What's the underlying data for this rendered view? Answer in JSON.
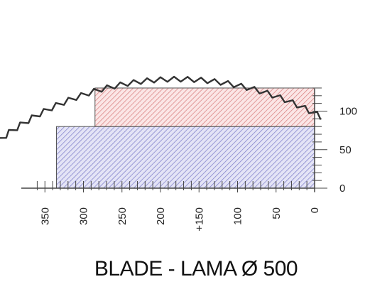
{
  "caption": "BLADE - LAMA Ø 500",
  "blade_diameter": 500,
  "x_axis": {
    "ticks": [
      {
        "label": "350",
        "value": 350
      },
      {
        "label": "300",
        "value": 300
      },
      {
        "label": "250",
        "value": 250
      },
      {
        "label": "200",
        "value": 200
      },
      {
        "label": "+150",
        "value": 150
      },
      {
        "label": "100",
        "value": 100
      },
      {
        "label": "50",
        "value": 50
      },
      {
        "label": "0",
        "value": 0
      }
    ]
  },
  "y_axis": {
    "ticks": [
      {
        "label": "100",
        "value": 100
      },
      {
        "label": "50",
        "value": 50
      },
      {
        "label": "0",
        "value": 0
      }
    ]
  },
  "zones": [
    {
      "color": "#9a9ad8",
      "x_from": 0,
      "x_to": 335,
      "y_from": 0,
      "y_to": 80
    },
    {
      "color": "#e89a9a",
      "x_from": 0,
      "x_to": 285,
      "y_from": 80,
      "y_to": 130
    }
  ],
  "colors": {
    "blade": "#333333",
    "axis": "#444444",
    "zone_outline": "#555555"
  }
}
